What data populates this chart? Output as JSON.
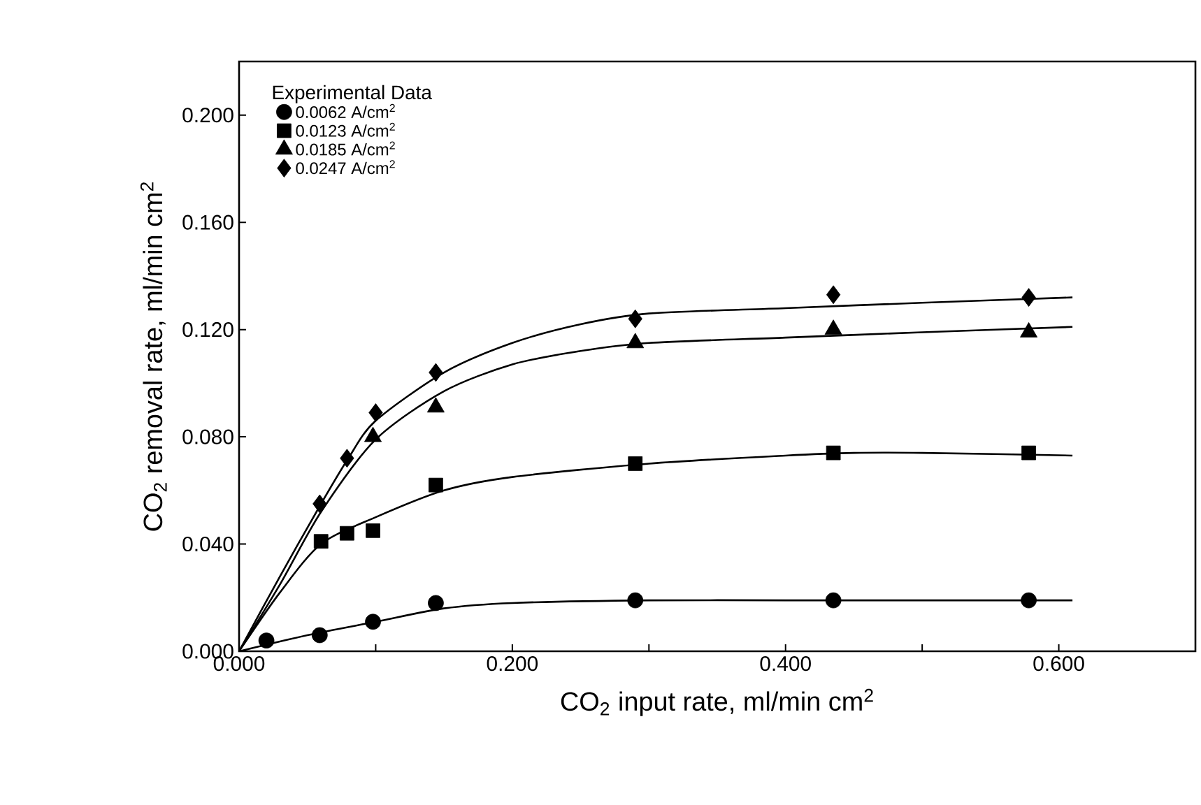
{
  "chart_data": {
    "type": "scatter",
    "xlabel": "CO$_{2}$ input rate, ml/min cm$^{2}$",
    "ylabel": "CO$_{2}$ removal rate, ml/min cm$^{2}$",
    "legend_title": "Experimental Data",
    "legend": "top left",
    "grid": false,
    "xlim": [
      0,
      0.7
    ],
    "ylim": [
      0,
      0.22
    ],
    "xticks": [
      {
        "value": 0,
        "label": "0.000"
      },
      {
        "value": 0.1,
        "label": null
      },
      {
        "value": 0.2,
        "label": "0.200"
      },
      {
        "value": 0.3,
        "label": null
      },
      {
        "value": 0.4,
        "label": "0.400"
      },
      {
        "value": 0.5,
        "label": null
      },
      {
        "value": 0.6,
        "label": "0.600"
      }
    ],
    "yticks": [
      {
        "value": 0,
        "label": "0.000"
      },
      {
        "value": 0.04,
        "label": "0.040"
      },
      {
        "value": 0.08,
        "label": "0.080"
      },
      {
        "value": 0.12,
        "label": "0.120"
      },
      {
        "value": 0.16,
        "label": "0.160"
      },
      {
        "value": 0.2,
        "label": "0.200"
      }
    ],
    "series": [
      {
        "name": "0.0062 A/cm$^{2}$",
        "marker": "circle",
        "color": "#000000",
        "x": [
          0.02,
          0.059,
          0.098,
          0.144,
          0.29,
          0.435,
          0.578
        ],
        "values": [
          0.004,
          0.006,
          0.011,
          0.018,
          0.019,
          0.019,
          0.019
        ]
      },
      {
        "name": "0.0123 A/cm$^{2}$",
        "marker": "square",
        "color": "#000000",
        "x": [
          0.06,
          0.079,
          0.098,
          0.144,
          0.29,
          0.435,
          0.578
        ],
        "values": [
          0.041,
          0.044,
          0.045,
          0.062,
          0.07,
          0.074,
          0.074
        ]
      },
      {
        "name": "0.0185 A/cm$^{2}$",
        "marker": "triangle",
        "color": "#000000",
        "x": [
          0.098,
          0.144,
          0.29,
          0.435,
          0.578
        ],
        "values": [
          0.08,
          0.091,
          0.115,
          0.12,
          0.119
        ]
      },
      {
        "name": "0.0247 A/cm$^{2}$",
        "marker": "diamond",
        "color": "#000000",
        "x": [
          0.059,
          0.079,
          0.1,
          0.144,
          0.29,
          0.435,
          0.578
        ],
        "values": [
          0.055,
          0.072,
          0.089,
          0.104,
          0.124,
          0.133,
          0.132
        ]
      },
      {
        "type": "line",
        "color": "#000000",
        "marker": "none",
        "line_style": "solid",
        "x": [
          0,
          0.05,
          0.1,
          0.15,
          0.2,
          0.3,
          0.4,
          0.5,
          0.61
        ],
        "values": [
          0,
          0.006,
          0.011,
          0.016,
          0.018,
          0.019,
          0.019,
          0.019,
          0.019
        ]
      },
      {
        "type": "line",
        "color": "#000000",
        "marker": "none",
        "line_style": "solid",
        "x": [
          0,
          0.03,
          0.06,
          0.1,
          0.15,
          0.2,
          0.3,
          0.4,
          0.45,
          0.5,
          0.61
        ],
        "values": [
          0,
          0.022,
          0.04,
          0.05,
          0.06,
          0.065,
          0.07,
          0.073,
          0.074,
          0.074,
          0.073
        ]
      },
      {
        "type": "line",
        "color": "#000000",
        "marker": "none",
        "line_style": "solid",
        "x": [
          0,
          0.03,
          0.06,
          0.1,
          0.15,
          0.2,
          0.25,
          0.3,
          0.4,
          0.5,
          0.61
        ],
        "values": [
          0,
          0.025,
          0.052,
          0.079,
          0.097,
          0.107,
          0.112,
          0.115,
          0.117,
          0.119,
          0.121
        ]
      },
      {
        "type": "line",
        "color": "#000000",
        "marker": "none",
        "line_style": "solid",
        "x": [
          0,
          0.03,
          0.06,
          0.08,
          0.1,
          0.15,
          0.2,
          0.25,
          0.3,
          0.4,
          0.5,
          0.61
        ],
        "values": [
          0,
          0.028,
          0.055,
          0.072,
          0.086,
          0.104,
          0.115,
          0.122,
          0.126,
          0.128,
          0.13,
          0.132
        ]
      }
    ]
  }
}
